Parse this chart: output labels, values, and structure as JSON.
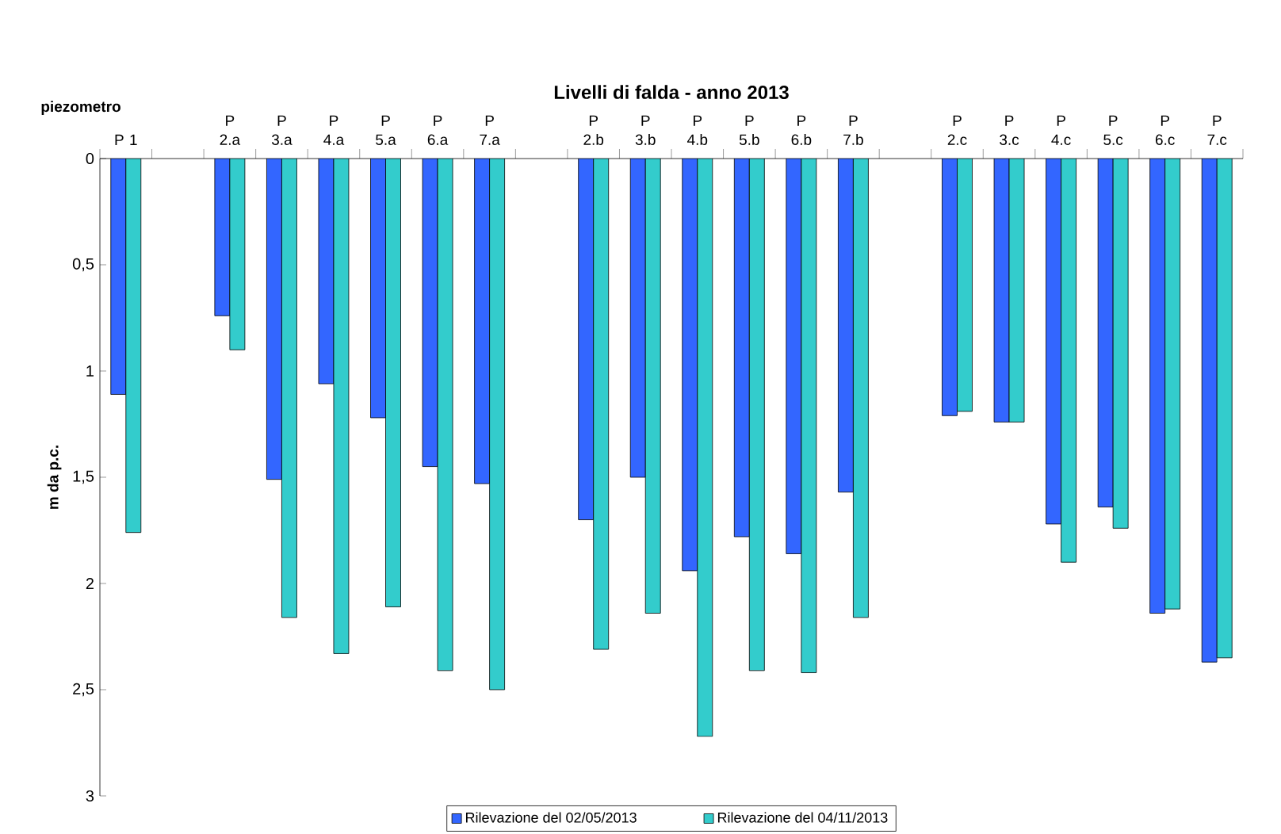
{
  "chart_data": {
    "type": "bar",
    "title": "Livelli di falda - anno 2013",
    "xlabel": "piezometro",
    "ylabel": "m da p.c.",
    "categories": [
      "P 1",
      null,
      "P 2.a",
      "P 3.a",
      "P 4.a",
      "P 5.a",
      "P 6.a",
      "P 7.a",
      null,
      "P 2.b",
      "P 3.b",
      "P 4.b",
      "P 5.b",
      "P 6.b",
      "P 7.b",
      null,
      "P 2.c",
      "P 3.c",
      "P 4.c",
      "P 5.c",
      "P 6.c",
      "P 7.c"
    ],
    "series": [
      {
        "name": "Rilevazione del 02/05/2013",
        "color": "#3366ff",
        "values": [
          1.11,
          null,
          0.74,
          1.51,
          1.06,
          1.22,
          1.45,
          1.53,
          null,
          1.7,
          1.5,
          1.94,
          1.78,
          1.86,
          1.57,
          null,
          1.21,
          1.24,
          1.72,
          1.64,
          2.14,
          2.37
        ]
      },
      {
        "name": "Rilevazione del 04/11/2013",
        "color": "#33cccc",
        "values": [
          1.76,
          null,
          0.9,
          2.16,
          2.33,
          2.11,
          2.41,
          2.5,
          null,
          2.31,
          2.14,
          2.72,
          2.41,
          2.42,
          2.16,
          null,
          1.19,
          1.24,
          1.9,
          1.74,
          2.12,
          2.35
        ]
      }
    ],
    "ylim": [
      3,
      0
    ],
    "yticks": [
      0,
      {
        "value": 0.5,
        "label": "0,5"
      },
      1,
      {
        "value": 1.5,
        "label": "1,5"
      },
      2,
      {
        "value": 2.5,
        "label": "2,5"
      },
      3
    ],
    "legend": "bottom",
    "grid": false
  }
}
